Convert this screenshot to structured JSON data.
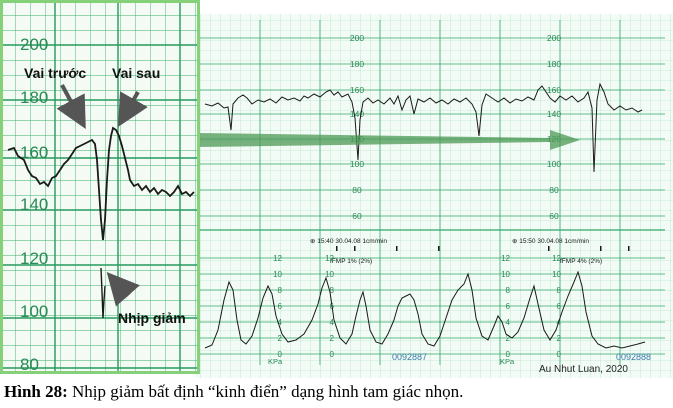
{
  "inset": {
    "ticks": [
      "200",
      "180",
      "160",
      "140",
      "120",
      "100",
      "80"
    ],
    "labels": {
      "shoulder_before": "Vai trước",
      "shoulder_after": "Vai sau",
      "decel": "Nhịp giảm"
    }
  },
  "strip": {
    "fhr_ticks": [
      "200",
      "180",
      "160",
      "140",
      "120",
      "100",
      "80",
      "60"
    ],
    "header_1": "⊕ 15:40  30.04.08  1cm/min",
    "header_2": "⊕ 15:50  30.04.08  1cm/min",
    "fmp_1": "fFMP  1% (2%)",
    "fmp_2": "fFMP  4% (2%)",
    "toco_ticks": [
      "12",
      "10",
      "8",
      "6",
      "4",
      "2",
      "0"
    ],
    "unit": "KPa",
    "serial_1": "0092887",
    "serial_2": "0092888",
    "credit": "Au Nhut Luan, 2020"
  },
  "caption": {
    "label": "Hình 28:",
    "text": " Nhịp giảm bất định “kinh điển” dạng hình tam giác nhọn."
  },
  "colors": {
    "grid": "#2fa866",
    "grid_light": "#8fd6ae",
    "paper": "#f3fbf6",
    "trace": "#1a1a1a",
    "arrow_green": "#4e9a55",
    "inset_border": "#86d07a",
    "annot_arrow": "#555555"
  }
}
